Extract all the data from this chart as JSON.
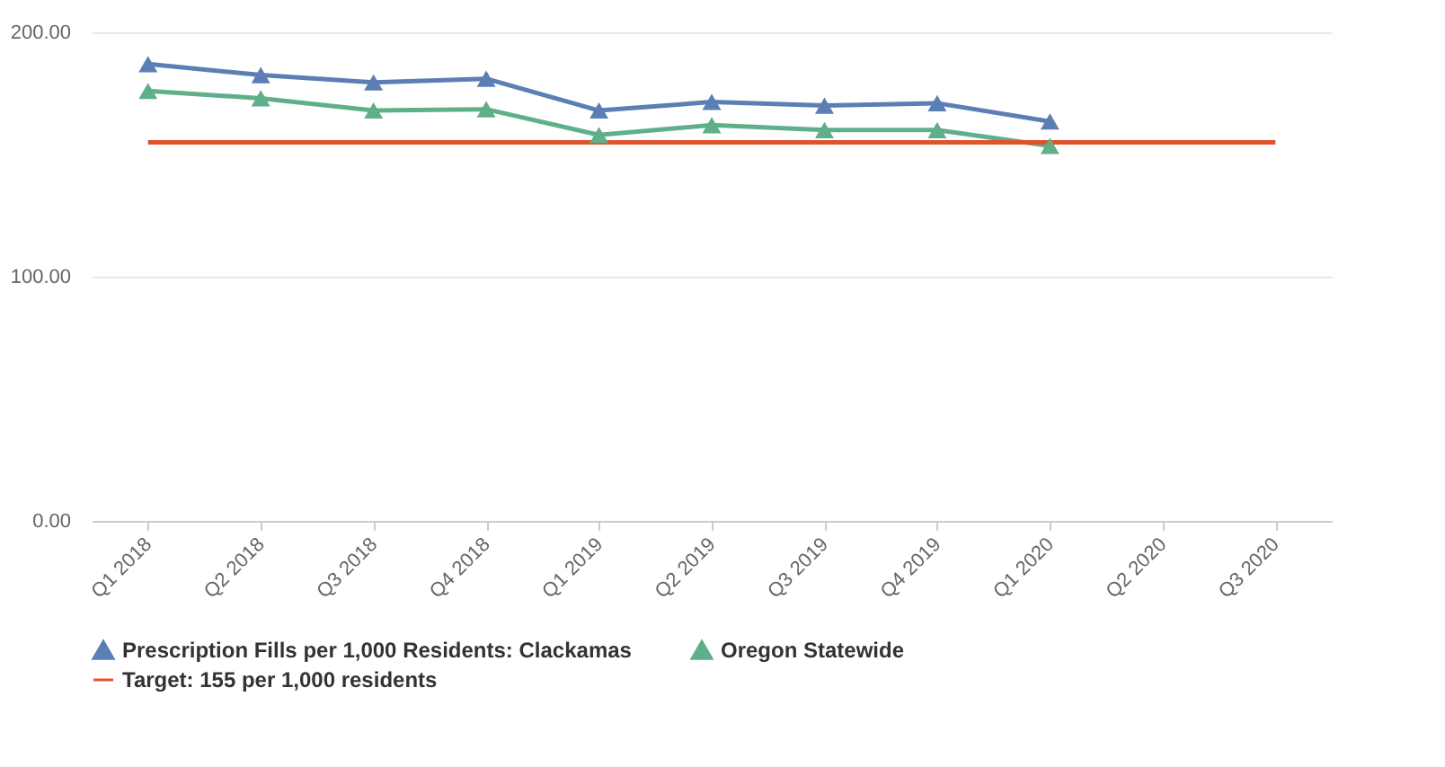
{
  "chart_data": {
    "type": "line",
    "categories": [
      "Q1 2018",
      "Q2 2018",
      "Q3 2018",
      "Q4 2018",
      "Q1 2019",
      "Q2 2019",
      "Q3 2019",
      "Q4 2019",
      "Q1 2020",
      "Q2 2020",
      "Q3 2020"
    ],
    "series": [
      {
        "name": "Prescription Fills per 1,000 Residents: Clackamas",
        "color": "#5b7fb5",
        "marker": "triangle",
        "values": [
          187,
          182.5,
          179.5,
          181,
          168,
          171.5,
          170,
          171,
          163.5,
          null,
          null
        ]
      },
      {
        "name": "Oregon Statewide",
        "color": "#5fb08a",
        "marker": "triangle",
        "values": [
          176,
          173,
          168,
          168.5,
          158,
          162,
          160,
          160,
          153.5,
          null,
          null
        ]
      },
      {
        "name": "Target: 155 per 1,000 residents",
        "color": "#e0522a",
        "marker": "none",
        "values": [
          155,
          155,
          155,
          155,
          155,
          155,
          155,
          155,
          155,
          155,
          155
        ]
      }
    ],
    "ylim": [
      0,
      200
    ],
    "yticks": [
      {
        "value": 0,
        "label": "0.00"
      },
      {
        "value": 100,
        "label": "100.00"
      },
      {
        "value": 200,
        "label": "200.00"
      }
    ],
    "grid": "y",
    "legend": "bottom"
  }
}
